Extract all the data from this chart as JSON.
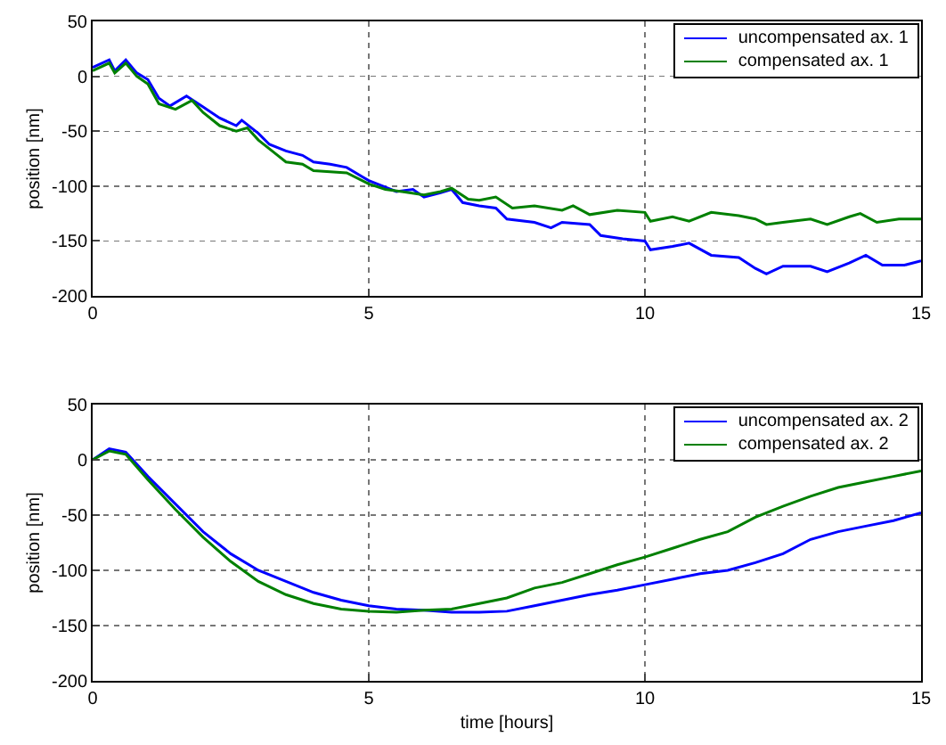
{
  "chart_data": [
    {
      "type": "line",
      "ylabel": "position [nm]",
      "xlim": [
        0,
        15
      ],
      "xticks": [
        0,
        5,
        10,
        15
      ],
      "ylim": [
        -200,
        50
      ],
      "yticks": [
        -200,
        -150,
        -100,
        -50,
        0,
        50
      ],
      "grid": true,
      "legend": "top right",
      "line_style": "solid",
      "marker": "none",
      "series": [
        {
          "name": "uncompensated ax. 1",
          "color": "#0000ff",
          "x": [
            0,
            0.3,
            0.4,
            0.6,
            0.8,
            1.0,
            1.2,
            1.4,
            1.7,
            2.0,
            2.3,
            2.6,
            2.7,
            3.0,
            3.2,
            3.5,
            3.8,
            4.0,
            4.3,
            4.6,
            4.9,
            5.0,
            5.5,
            5.8,
            6.0,
            6.3,
            6.5,
            6.7,
            7.0,
            7.3,
            7.5,
            8.0,
            8.3,
            8.5,
            9.0,
            9.2,
            9.6,
            10,
            10.1,
            10.5,
            10.8,
            11.2,
            11.7,
            12.0,
            12.2,
            12.5,
            13.0,
            13.3,
            13.7,
            14.0,
            14.3,
            14.7,
            15
          ],
          "values": [
            8,
            15,
            5,
            15,
            3,
            -3,
            -20,
            -27,
            -18,
            -28,
            -38,
            -45,
            -40,
            -52,
            -62,
            -68,
            -72,
            -78,
            -80,
            -83,
            -92,
            -95,
            -105,
            -103,
            -110,
            -106,
            -103,
            -115,
            -118,
            -120,
            -130,
            -133,
            -138,
            -133,
            -135,
            -145,
            -148,
            -150,
            -158,
            -155,
            -152,
            -163,
            -165,
            -175,
            -180,
            -173,
            -173,
            -178,
            -170,
            -163,
            -172,
            -172,
            -168
          ]
        },
        {
          "name": "compensated ax. 1",
          "color": "#008000",
          "x": [
            0,
            0.3,
            0.4,
            0.6,
            0.8,
            1.0,
            1.2,
            1.5,
            1.8,
            2.0,
            2.3,
            2.6,
            2.8,
            3.0,
            3.3,
            3.5,
            3.8,
            4.0,
            4.3,
            4.6,
            5.0,
            5.3,
            5.6,
            6.0,
            6.3,
            6.5,
            6.8,
            7.0,
            7.3,
            7.6,
            8.0,
            8.5,
            8.7,
            9.0,
            9.5,
            10.0,
            10.1,
            10.5,
            10.8,
            11.2,
            11.7,
            12.0,
            12.2,
            12.5,
            13.0,
            13.3,
            13.7,
            13.9,
            14.2,
            14.6,
            15
          ],
          "values": [
            5,
            12,
            3,
            12,
            0,
            -7,
            -25,
            -30,
            -22,
            -33,
            -45,
            -50,
            -47,
            -58,
            -70,
            -78,
            -80,
            -86,
            -87,
            -88,
            -98,
            -103,
            -105,
            -108,
            -105,
            -102,
            -112,
            -113,
            -110,
            -120,
            -118,
            -122,
            -118,
            -126,
            -122,
            -124,
            -132,
            -128,
            -132,
            -124,
            -127,
            -130,
            -135,
            -133,
            -130,
            -135,
            -128,
            -125,
            -133,
            -130,
            -130
          ]
        }
      ]
    },
    {
      "type": "line",
      "xlabel": "time [hours]",
      "ylabel": "position [nm]",
      "xlim": [
        0,
        15
      ],
      "xticks": [
        0,
        5,
        10,
        15
      ],
      "ylim": [
        -200,
        50
      ],
      "yticks": [
        -200,
        -150,
        -100,
        -50,
        0,
        50
      ],
      "grid": true,
      "legend": "top right",
      "line_style": "solid",
      "marker": "none",
      "series": [
        {
          "name": "uncompensated ax. 2",
          "color": "#0000ff",
          "x": [
            0,
            0.3,
            0.6,
            1,
            1.5,
            2,
            2.5,
            3,
            3.5,
            4,
            4.5,
            5,
            5.5,
            6,
            6.5,
            7,
            7.5,
            8,
            8.5,
            9,
            9.5,
            10,
            10.5,
            11,
            11.5,
            12,
            12.5,
            13,
            13.5,
            14,
            14.5,
            15
          ],
          "values": [
            0,
            10,
            7,
            -15,
            -40,
            -65,
            -85,
            -100,
            -110,
            -120,
            -127,
            -132,
            -135,
            -136,
            -138,
            -138,
            -137,
            -132,
            -127,
            -122,
            -118,
            -113,
            -108,
            -103,
            -100,
            -93,
            -85,
            -72,
            -65,
            -60,
            -55,
            -48
          ]
        },
        {
          "name": "compensated ax. 2",
          "color": "#008000",
          "x": [
            0,
            0.3,
            0.6,
            1,
            1.5,
            2,
            2.5,
            3,
            3.5,
            4,
            4.5,
            5,
            5.5,
            6,
            6.5,
            7,
            7.5,
            8,
            8.5,
            9,
            9.5,
            10,
            10.5,
            11,
            11.5,
            12,
            12.5,
            13,
            13.5,
            14,
            14.5,
            15
          ],
          "values": [
            0,
            8,
            5,
            -18,
            -45,
            -70,
            -92,
            -110,
            -122,
            -130,
            -135,
            -137,
            -138,
            -136,
            -135,
            -130,
            -125,
            -116,
            -111,
            -103,
            -95,
            -88,
            -80,
            -72,
            -65,
            -52,
            -42,
            -33,
            -25,
            -20,
            -15,
            -10
          ]
        }
      ]
    }
  ]
}
